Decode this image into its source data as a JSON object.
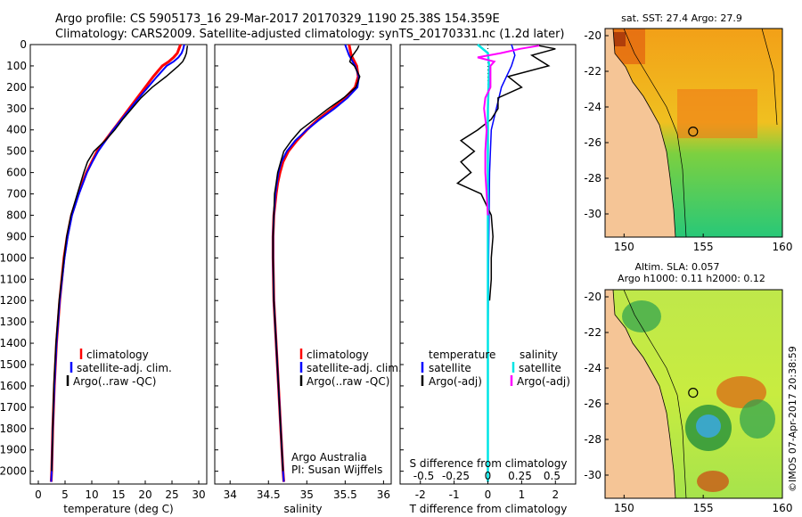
{
  "header": {
    "line1": "Argo profile: CS 5905173_16 29-Mar-2017 20170329_1190 25.38S 154.359E",
    "line2": "Climatology: CARS2009. Satellite-adjusted climatology: synTS_20170331.nc (1.2d later)"
  },
  "colors": {
    "climatology": "#ff0000",
    "satellite": "#0000ff",
    "argo": "#000000",
    "sal_satellite": "#00e5e5",
    "sal_argo": "#ff00ff"
  },
  "depth_axis": {
    "ticks": [
      0,
      100,
      200,
      300,
      400,
      500,
      600,
      700,
      800,
      900,
      1000,
      1100,
      1200,
      1300,
      1400,
      1500,
      1600,
      1700,
      1800,
      1900,
      2000
    ],
    "range": [
      0,
      2060
    ]
  },
  "chart_data": [
    {
      "type": "line",
      "name": "temperature",
      "xlabel": "temperature (deg C)",
      "xlim": [
        -1.5,
        31.5
      ],
      "xticks": [
        0,
        5,
        10,
        15,
        20,
        25,
        30
      ],
      "legend": [
        "climatology",
        "satellite-adj. clim.",
        "Argo(..raw -QC)"
      ],
      "series": [
        {
          "name": "climatology",
          "depth": [
            0,
            20,
            40,
            60,
            80,
            100,
            150,
            200,
            250,
            300,
            350,
            400,
            450,
            500,
            550,
            600,
            700,
            800,
            900,
            1000,
            1200,
            1400,
            1600,
            1800,
            2000,
            2050
          ],
          "values": [
            26.6,
            26.3,
            26.0,
            25.3,
            24.4,
            23.2,
            21.5,
            20.0,
            18.5,
            17.0,
            15.5,
            14.0,
            12.5,
            11.0,
            10.0,
            9.0,
            7.5,
            6.2,
            5.4,
            4.8,
            4.0,
            3.4,
            3.0,
            2.7,
            2.5,
            2.4
          ]
        },
        {
          "name": "satellite-adj. clim.",
          "depth": [
            0,
            20,
            40,
            60,
            80,
            100,
            150,
            200,
            250,
            300,
            350,
            400,
            450,
            500,
            550,
            600,
            700,
            800,
            900,
            1000,
            1200,
            1400,
            1600,
            1800,
            2000,
            2050
          ],
          "values": [
            27.3,
            27.1,
            26.8,
            26.2,
            25.3,
            24.0,
            22.2,
            20.5,
            18.8,
            17.2,
            15.6,
            14.0,
            12.6,
            11.2,
            10.1,
            9.1,
            7.6,
            6.3,
            5.5,
            4.9,
            4.0,
            3.4,
            3.0,
            2.7,
            2.5,
            2.4
          ]
        },
        {
          "name": "Argo(..raw -QC)",
          "depth": [
            5,
            20,
            40,
            60,
            80,
            100,
            150,
            200,
            250,
            300,
            350,
            400,
            450,
            500,
            550,
            600,
            700,
            800,
            900,
            1000,
            1200,
            1400,
            1600,
            1800,
            2000
          ],
          "values": [
            27.9,
            27.8,
            27.7,
            27.4,
            27.0,
            26.2,
            23.9,
            21.3,
            19.2,
            17.5,
            15.8,
            14.3,
            12.5,
            10.4,
            9.2,
            8.5,
            7.3,
            6.1,
            5.3,
            4.8,
            3.9,
            3.3,
            2.9,
            2.7,
            2.5
          ]
        }
      ]
    },
    {
      "type": "line",
      "name": "salinity",
      "xlabel": "salinity",
      "xlim": [
        33.8,
        36.1
      ],
      "xticks": [
        34,
        34.5,
        35,
        35.5,
        36
      ],
      "legend": [
        "climatology",
        "satellite-adj. clim.",
        "Argo(..raw -QC)"
      ],
      "annotation": [
        "Argo Australia",
        "PI: Susan Wijffels"
      ],
      "series": [
        {
          "name": "climatology",
          "depth": [
            0,
            50,
            100,
            150,
            200,
            250,
            300,
            350,
            400,
            450,
            500,
            550,
            600,
            650,
            700,
            800,
            900,
            1000,
            1200,
            1400,
            1600,
            1800,
            2000,
            2050
          ],
          "values": [
            35.55,
            35.58,
            35.65,
            35.67,
            35.63,
            35.5,
            35.33,
            35.15,
            35.0,
            34.87,
            34.76,
            34.69,
            34.65,
            34.62,
            34.6,
            34.57,
            34.56,
            34.56,
            34.57,
            34.6,
            34.63,
            34.66,
            34.69,
            34.7
          ]
        },
        {
          "name": "satellite-adj. clim.",
          "depth": [
            0,
            50,
            100,
            150,
            200,
            250,
            300,
            350,
            400,
            450,
            500,
            550,
            600,
            650,
            700,
            800,
            900,
            1000,
            1200,
            1400,
            1600,
            1800,
            2000,
            2050
          ],
          "values": [
            35.5,
            35.55,
            35.63,
            35.68,
            35.66,
            35.53,
            35.36,
            35.17,
            35.0,
            34.85,
            34.74,
            34.67,
            34.63,
            34.61,
            34.59,
            34.57,
            34.56,
            34.56,
            34.57,
            34.6,
            34.63,
            34.66,
            34.69,
            34.7
          ]
        },
        {
          "name": "Argo(..raw -QC)",
          "depth": [
            5,
            20,
            40,
            60,
            80,
            100,
            150,
            200,
            250,
            300,
            350,
            400,
            450,
            500,
            550,
            600,
            650,
            700,
            800,
            900,
            1000,
            1200,
            1400,
            1600,
            1800,
            2000
          ],
          "values": [
            35.68,
            35.66,
            35.62,
            35.58,
            35.56,
            35.62,
            35.69,
            35.64,
            35.48,
            35.28,
            35.1,
            34.92,
            34.8,
            34.7,
            34.66,
            34.62,
            34.6,
            34.58,
            34.57,
            34.56,
            34.56,
            34.57,
            34.6,
            34.63,
            34.66,
            34.69
          ]
        }
      ]
    },
    {
      "type": "line",
      "name": "differences",
      "xlabel": "T difference from climatology",
      "xlim": [
        -2.6,
        2.6
      ],
      "xticks": [
        -2,
        -1,
        0,
        1,
        2
      ],
      "top_label": "S difference from climatology",
      "top_ticks": [
        "-0.5",
        "-0.25",
        "0",
        "0.25",
        "0.5"
      ],
      "top_tick_temp_positions": [
        -1.9,
        -0.95,
        0,
        0.95,
        1.9
      ],
      "legend_titles": [
        "temperature",
        "salinity"
      ],
      "legend": [
        "satellite",
        "Argo(-adj)",
        "satellite",
        "Argo(-adj)"
      ],
      "series": [
        {
          "name": "T satellite",
          "depth": [
            0,
            50,
            100,
            200,
            400,
            600,
            1000,
            1500,
            2000,
            2050
          ],
          "values": [
            0.7,
            0.8,
            0.7,
            0.4,
            0.1,
            0.05,
            0.02,
            0.0,
            0.0,
            0.0
          ]
        },
        {
          "name": "T Argo(-adj)",
          "depth": [
            5,
            20,
            50,
            100,
            150,
            200,
            250,
            300,
            350,
            400,
            450,
            500,
            550,
            600,
            650,
            700,
            800,
            900,
            1000,
            1100,
            1200
          ],
          "values": [
            1.5,
            2.0,
            1.3,
            1.8,
            0.6,
            1.0,
            0.3,
            0.3,
            0.1,
            -0.3,
            -0.8,
            -0.4,
            -0.8,
            -0.5,
            -0.9,
            -0.2,
            0.1,
            0.15,
            0.1,
            0.1,
            0.05
          ]
        },
        {
          "name": "S satellite",
          "depth": [
            0,
            40,
            100,
            200,
            300,
            500,
            800,
            1200,
            1600,
            2000,
            2050
          ],
          "values": [
            -0.08,
            0.0,
            0.01,
            0.005,
            0.0,
            0.0,
            0.0,
            0.0,
            0.0,
            0.0,
            0.0
          ]
        },
        {
          "name": "S Argo(-adj)",
          "depth": [
            5,
            20,
            40,
            60,
            80,
            100,
            150,
            200,
            250,
            300,
            400,
            500,
            600,
            700,
            800
          ],
          "values": [
            0.4,
            0.25,
            0.1,
            -0.08,
            0.05,
            0.02,
            0.02,
            0.02,
            -0.02,
            -0.03,
            -0.01,
            -0.02,
            -0.02,
            -0.01,
            0.0
          ]
        }
      ]
    },
    {
      "type": "heatmap",
      "name": "sst_map",
      "title": "sat. SST: 27.4 Argo: 27.9",
      "xticks": [
        150,
        155,
        160
      ],
      "yticks": [
        -20,
        -22,
        -24,
        -26,
        -28,
        -30
      ],
      "xlim": [
        148.8,
        160
      ],
      "ylim": [
        -31.3,
        -19.6
      ],
      "marker": {
        "lon": 154.359,
        "lat": -25.38
      }
    },
    {
      "type": "heatmap",
      "name": "sla_map",
      "title_lines": [
        "Altim. SLA: 0.057",
        "Argo h1000: 0.11 h2000: 0.12"
      ],
      "xticks": [
        150,
        155,
        160
      ],
      "yticks": [
        -20,
        -22,
        -24,
        -26,
        -28,
        -30
      ],
      "xlim": [
        148.8,
        160
      ],
      "ylim": [
        -31.3,
        -19.6
      ],
      "marker": {
        "lon": 154.359,
        "lat": -25.38
      }
    }
  ],
  "credit": "©IMOS 07-Apr-2017 20:38:59"
}
